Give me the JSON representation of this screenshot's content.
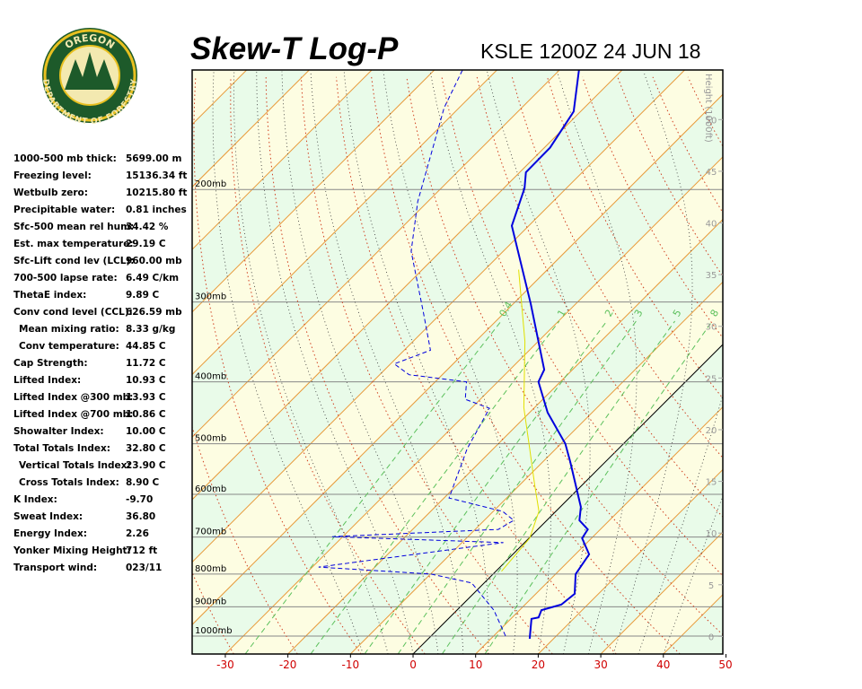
{
  "logo": {
    "top": "OREGON",
    "bottom": "DEPARTMENT OF FORESTRY"
  },
  "indices": {
    "rows": [
      [
        "1000-500 mb thick:",
        "5699.00 m"
      ],
      [
        "Freezing level:",
        "15136.34 ft"
      ],
      [
        "Wetbulb zero:",
        "10215.80 ft"
      ],
      [
        "Precipitable water:",
        "0.81 inches"
      ],
      [
        "Sfc-500 mean rel hum:",
        "34.42 %"
      ],
      [
        "Est. max temperature:",
        "29.19 C"
      ],
      [
        "Sfc-Lift cond lev (LCL):",
        "960.00 mb"
      ],
      [
        "700-500 lapse rate:",
        "6.49 C/km"
      ],
      [
        "ThetaE index:",
        "9.89 C"
      ],
      [
        "Conv cond level (CCL):",
        "626.59 mb"
      ],
      [
        "Mean mixing ratio:",
        "8.33 g/kg"
      ],
      [
        "Conv temperature:",
        "44.85 C"
      ],
      [
        "Cap Strength:",
        "11.72 C"
      ],
      [
        "Lifted Index:",
        "10.93 C"
      ],
      [
        "Lifted Index @300 mb:",
        "13.93 C"
      ],
      [
        "Lifted Index @700 mb:",
        "10.86 C"
      ],
      [
        "Showalter Index:",
        "10.00 C"
      ],
      [
        "Total Totals Index:",
        "32.80 C"
      ],
      [
        "Vertical Totals Index:",
        "23.90 C"
      ],
      [
        "Cross Totals Index:",
        "8.90 C"
      ],
      [
        "K Index:",
        "-9.70"
      ],
      [
        "Sweat Index:",
        "36.80"
      ],
      [
        "Energy Index:",
        "2.26"
      ],
      [
        "Yonker Mixing Height:",
        "712 ft"
      ],
      [
        "Transport wind:",
        "023/11"
      ]
    ]
  },
  "chart_data": {
    "type": "skewt",
    "title": "Skew-T Log-P",
    "subtitle": "KSLE 1200Z 24 JUN 18",
    "xlim": [
      -35.3,
      49.5
    ],
    "xticks": [
      -30,
      -20,
      -10,
      0,
      10,
      20,
      30,
      40,
      50
    ],
    "plim": [
      1067,
      130
    ],
    "log_scale": true,
    "pticks": [
      {
        "value": 1000,
        "label": "1000mb"
      },
      {
        "value": 900,
        "label": "900mb"
      },
      {
        "value": 800,
        "label": "800mb"
      },
      {
        "value": 700,
        "label": "700mb"
      },
      {
        "value": 600,
        "label": "600mb"
      },
      {
        "value": 500,
        "label": "500mb"
      },
      {
        "value": 400,
        "label": "400mb"
      },
      {
        "value": 300,
        "label": "300mb"
      },
      {
        "value": 200,
        "label": "200mb"
      }
    ],
    "height_label": "Height (1000ft)",
    "hlim": [
      -1.7,
      54.8
    ],
    "hticks": [
      0,
      5,
      10,
      15,
      20,
      25,
      30,
      35,
      40,
      45,
      50
    ],
    "mixing_ratios": [
      0.4,
      1,
      2,
      3,
      5,
      8
    ],
    "series": [
      {
        "color": "#0000dd",
        "style": "solid",
        "pressure": [
          1010,
          940,
          935,
          911,
          893,
          859,
          800,
          745,
          703,
          681,
          659,
          628,
          534,
          500,
          447,
          400,
          383,
          302,
          228,
          199,
          188,
          172,
          151,
          130
        ],
        "values": [
          16.2,
          13.3,
          14.2,
          13.5,
          15.8,
          16.2,
          13.2,
          12.2,
          8.5,
          8.0,
          5.2,
          3.3,
          -5.6,
          -9.3,
          -17.1,
          -23.5,
          -24.5,
          -37.2,
          -52.7,
          -56.7,
          -59.0,
          -59.1,
          -61.1,
          -66.9
        ]
      },
      {
        "color": "#0000dd",
        "style": "dashed",
        "pressure": [
          1000,
          911,
          826,
          800,
          780,
          714,
          699,
          681,
          659,
          638,
          608,
          509,
          440,
          426,
          400,
          390,
          375,
          357,
          312,
          250,
          209,
          149,
          130
        ],
        "values": [
          11.9,
          5.9,
          -2.0,
          -9.9,
          -29.0,
          -3.4,
          -31.7,
          -6.3,
          -5.3,
          -8.5,
          -19.2,
          -24.2,
          -27.1,
          -32.4,
          -35.0,
          -45.3,
          -49.4,
          -45.8,
          -52.9,
          -64.7,
          -71.6,
          -82.4,
          -85.5
        ]
      },
      {
        "color": "#e0e000",
        "style": "solid",
        "pressure": [
          792,
          703,
          638,
          579,
          509,
          439,
          346,
          267
        ],
        "values": [
          0.9,
          0.1,
          -2.7,
          -7.7,
          -14.2,
          -21.7,
          -32.1,
          -44.6
        ]
      }
    ]
  }
}
